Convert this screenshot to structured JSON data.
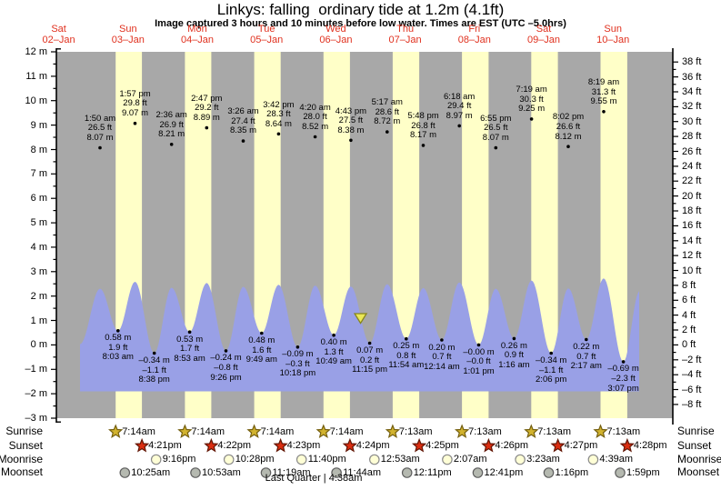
{
  "title": "Linkys: falling  ordinary tide at 1.2m (4.1ft)",
  "subtitle": "Image captured 3 hours and 10 minutes before low water. Times are EST (UTC –5.0hrs)",
  "x_axis_days": [
    {
      "weekday": "Sat",
      "date": "02–Jan"
    },
    {
      "weekday": "Sun",
      "date": "03–Jan"
    },
    {
      "weekday": "Mon",
      "date": "04–Jan"
    },
    {
      "weekday": "Tue",
      "date": "05–Jan"
    },
    {
      "weekday": "Wed",
      "date": "06–Jan"
    },
    {
      "weekday": "Thu",
      "date": "07–Jan"
    },
    {
      "weekday": "Fri",
      "date": "08–Jan"
    },
    {
      "weekday": "Sat",
      "date": "09–Jan"
    },
    {
      "weekday": "Sun",
      "date": "10–Jan"
    }
  ],
  "y_axis": {
    "left_tick_labels": [
      "12 m",
      "11 m",
      "10 m",
      "9 m",
      "8 m",
      "7 m",
      "6 m",
      "5 m",
      "4 m",
      "3 m",
      "2 m",
      "1 m",
      "0 m",
      "–1 m",
      "–2 m",
      "–3 m"
    ],
    "right_tick_labels": [
      "38 ft",
      "36 ft",
      "34 ft",
      "32 ft",
      "30 ft",
      "28 ft",
      "26 ft",
      "24 ft",
      "22 ft",
      "20 ft",
      "18 ft",
      "16 ft",
      "14 ft",
      "12 ft",
      "10 ft",
      "8 ft",
      "6 ft",
      "4 ft",
      "2 ft",
      "0 ft",
      "–2 ft",
      "–4 ft",
      "–6 ft",
      "–8 ft"
    ]
  },
  "chart_data": {
    "type": "area",
    "title": "Linkys: falling  ordinary tide at 1.2m (4.1ft)",
    "ylabel_left_unit": "m",
    "ylabel_right_unit": "ft",
    "y_left_range_m": [
      -3,
      12
    ],
    "tide_events": [
      {
        "type": "high",
        "day": 1,
        "time": "1:50 am",
        "ft_label": "26.5 ft",
        "m_label": "8.07 m",
        "value_m": 8.07
      },
      {
        "type": "low",
        "day": 1,
        "time": "8:03 am",
        "ft_label": "1.9 ft",
        "m_label": "0.58 m",
        "value_m": 0.58
      },
      {
        "type": "high",
        "day": 1,
        "time": "1:57 pm",
        "ft_label": "29.8 ft",
        "m_label": "9.07 m",
        "value_m": 9.07
      },
      {
        "type": "low",
        "day": 1,
        "time": "8:38 pm",
        "ft_label": "–1.1 ft",
        "m_label": "–0.34 m",
        "value_m": -0.34
      },
      {
        "type": "high",
        "day": 2,
        "time": "2:36 am",
        "ft_label": "26.9 ft",
        "m_label": "8.21 m",
        "value_m": 8.21
      },
      {
        "type": "low",
        "day": 2,
        "time": "8:53 am",
        "ft_label": "1.7 ft",
        "m_label": "0.53 m",
        "value_m": 0.53
      },
      {
        "type": "high",
        "day": 2,
        "time": "2:47 pm",
        "ft_label": "29.2 ft",
        "m_label": "8.89 m",
        "value_m": 8.89
      },
      {
        "type": "low",
        "day": 2,
        "time": "9:26 pm",
        "ft_label": "–0.8 ft",
        "m_label": "–0.24 m",
        "value_m": -0.24
      },
      {
        "type": "high",
        "day": 3,
        "time": "3:26 am",
        "ft_label": "27.4 ft",
        "m_label": "8.35 m",
        "value_m": 8.35
      },
      {
        "type": "low",
        "day": 3,
        "time": "9:49 am",
        "ft_label": "1.6 ft",
        "m_label": "0.48 m",
        "value_m": 0.48
      },
      {
        "type": "high",
        "day": 3,
        "time": "3:42 pm",
        "ft_label": "28.3 ft",
        "m_label": "8.64 m",
        "value_m": 8.64
      },
      {
        "type": "low",
        "day": 3,
        "time": "10:18 pm",
        "ft_label": "–0.3 ft",
        "m_label": "–0.09 m",
        "value_m": -0.09
      },
      {
        "type": "high",
        "day": 4,
        "time": "4:20 am",
        "ft_label": "28.0 ft",
        "m_label": "8.52 m",
        "value_m": 8.52
      },
      {
        "type": "low",
        "day": 4,
        "time": "10:49 am",
        "ft_label": "1.3 ft",
        "m_label": "0.40 m",
        "value_m": 0.4
      },
      {
        "type": "high",
        "day": 4,
        "time": "4:43 pm",
        "ft_label": "27.5 ft",
        "m_label": "8.38 m",
        "value_m": 8.38
      },
      {
        "type": "low",
        "day": 4,
        "time": "11:15 pm",
        "ft_label": "0.2 ft",
        "m_label": "0.07 m",
        "value_m": 0.07
      },
      {
        "type": "high",
        "day": 5,
        "time": "5:17 am",
        "ft_label": "28.6 ft",
        "m_label": "8.72 m",
        "value_m": 8.72
      },
      {
        "type": "low",
        "day": 5,
        "time": "11:54 am",
        "ft_label": "0.8 ft",
        "m_label": "0.25 m",
        "value_m": 0.25
      },
      {
        "type": "high",
        "day": 5,
        "time": "5:48 pm",
        "ft_label": "26.8 ft",
        "m_label": "8.17 m",
        "value_m": 8.17
      },
      {
        "type": "low",
        "day": 6,
        "time": "12:14 am",
        "ft_label": "0.7 ft",
        "m_label": "0.20 m",
        "value_m": 0.2
      },
      {
        "type": "high",
        "day": 6,
        "time": "6:18 am",
        "ft_label": "29.4 ft",
        "m_label": "8.97 m",
        "value_m": 8.97
      },
      {
        "type": "low",
        "day": 6,
        "time": "1:01 pm",
        "ft_label": "–0.0 ft",
        "m_label": "–0.00 m",
        "value_m": 0.0
      },
      {
        "type": "high",
        "day": 6,
        "time": "6:55 pm",
        "ft_label": "26.5 ft",
        "m_label": "8.07 m",
        "value_m": 8.07
      },
      {
        "type": "low",
        "day": 7,
        "time": "1:16 am",
        "ft_label": "0.9 ft",
        "m_label": "0.26 m",
        "value_m": 0.26
      },
      {
        "type": "high",
        "day": 7,
        "time": "7:19 am",
        "ft_label": "30.3 ft",
        "m_label": "9.25 m",
        "value_m": 9.25
      },
      {
        "type": "low",
        "day": 7,
        "time": "2:06 pm",
        "ft_label": "–1.1 ft",
        "m_label": "–0.34 m",
        "value_m": -0.34
      },
      {
        "type": "high",
        "day": 7,
        "time": "8:02 pm",
        "ft_label": "26.6 ft",
        "m_label": "8.12 m",
        "value_m": 8.12
      },
      {
        "type": "low",
        "day": 8,
        "time": "2:17 am",
        "ft_label": "0.7 ft",
        "m_label": "0.22 m",
        "value_m": 0.22
      },
      {
        "type": "high",
        "day": 8,
        "time": "8:19 am",
        "ft_label": "31.3 ft",
        "m_label": "9.55 m",
        "value_m": 9.55
      },
      {
        "type": "low",
        "day": 8,
        "time": "3:07 pm",
        "ft_label": "–2.3 ft",
        "m_label": "–0.69 m",
        "value_m": -0.69
      }
    ],
    "capture_marker": {
      "day": 4,
      "time": "8:05 pm"
    },
    "sun_moon": {
      "sunrise": [
        {
          "day": 1,
          "time": "7:14am"
        },
        {
          "day": 2,
          "time": "7:14am"
        },
        {
          "day": 3,
          "time": "7:14am"
        },
        {
          "day": 4,
          "time": "7:14am"
        },
        {
          "day": 5,
          "time": "7:13am"
        },
        {
          "day": 6,
          "time": "7:13am"
        },
        {
          "day": 7,
          "time": "7:13am"
        },
        {
          "day": 8,
          "time": "7:13am"
        }
      ],
      "sunset": [
        {
          "day": 1,
          "time": "4:21pm"
        },
        {
          "day": 2,
          "time": "4:22pm"
        },
        {
          "day": 3,
          "time": "4:23pm"
        },
        {
          "day": 4,
          "time": "4:24pm"
        },
        {
          "day": 5,
          "time": "4:25pm"
        },
        {
          "day": 6,
          "time": "4:26pm"
        },
        {
          "day": 7,
          "time": "4:27pm"
        },
        {
          "day": 8,
          "time": "4:28pm"
        }
      ],
      "moonrise": [
        {
          "day": 1,
          "time": "9:16pm"
        },
        {
          "day": 2,
          "time": "10:28pm"
        },
        {
          "day": 3,
          "time": "11:40pm"
        },
        {
          "day": 5,
          "time": "12:53am"
        },
        {
          "day": 6,
          "time": "2:07am"
        },
        {
          "day": 7,
          "time": "3:23am"
        },
        {
          "day": 8,
          "time": "4:39am"
        }
      ],
      "moonset": [
        {
          "day": 1,
          "time": "10:25am"
        },
        {
          "day": 2,
          "time": "10:53am"
        },
        {
          "day": 3,
          "time": "11:19am"
        },
        {
          "day": 4,
          "time": "11:44am"
        },
        {
          "day": 5,
          "time": "12:11pm"
        },
        {
          "day": 6,
          "time": "12:41pm"
        },
        {
          "day": 7,
          "time": "1:16pm"
        },
        {
          "day": 8,
          "time": "1:59pm"
        }
      ]
    },
    "moon_phase": "Last Quarter | 4:38am"
  },
  "rows": {
    "sunrise": "Sunrise",
    "sunset": "Sunset",
    "moonrise": "Moonrise",
    "moonset": "Moonset"
  },
  "colors": {
    "plot_bg": "#a8a8a8",
    "daylight_band": "#ffffc8",
    "tide_fill": "#99a0e6",
    "day_label": "#e0301e",
    "sunrise_star": "#d2b32e",
    "sunset_star": "#da2d10",
    "moonrise_circle": "#ffffd6",
    "moonset_circle": "#b5b9b0",
    "capture_triangle": "#ebe857"
  }
}
